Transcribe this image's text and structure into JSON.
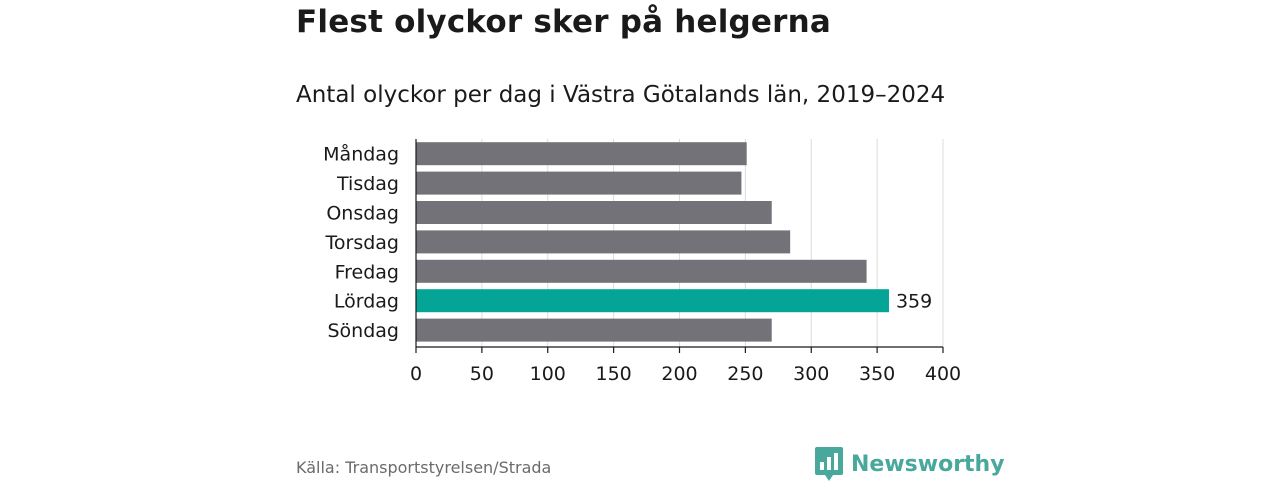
{
  "header": {
    "title": "Flest olyckor sker på helgerna",
    "subtitle": "Antal olyckor per dag i Västra Götalands län, 2019–2024"
  },
  "footer": {
    "source": "Källa: Transportstyrelsen/Strada",
    "brand": "Newsworthy",
    "brand_icon": "bar-chart-speech-bubble-icon"
  },
  "colors": {
    "bar_default": "#737278",
    "bar_highlight": "#04a497",
    "grid": "#dcdcdc",
    "axis": "#1a1a1a",
    "brand": "#48a89c"
  },
  "chart_data": {
    "type": "bar",
    "orientation": "horizontal",
    "categories": [
      "Måndag",
      "Tisdag",
      "Onsdag",
      "Torsdag",
      "Fredag",
      "Lördag",
      "Söndag"
    ],
    "values": [
      251,
      247,
      270,
      284,
      342,
      359,
      270
    ],
    "highlight": "Lördag",
    "data_labels": [
      {
        "category": "Lördag",
        "text": "359"
      }
    ],
    "xlim": [
      0,
      400
    ],
    "xticks": [
      0,
      50,
      100,
      150,
      200,
      250,
      300,
      350,
      400
    ],
    "grid": true,
    "xlabel": "",
    "ylabel": ""
  }
}
